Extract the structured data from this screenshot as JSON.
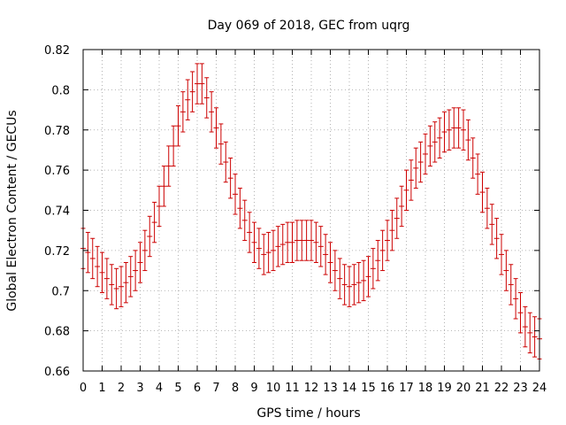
{
  "chart_data": {
    "type": "scatter",
    "title": "Day 069 of 2018, GEC from uqrg",
    "xlabel": "GPS time / hours",
    "ylabel": "Global Electron Content / GECUs",
    "xlim": [
      0,
      24
    ],
    "ylim": [
      0.66,
      0.82
    ],
    "grid": true,
    "x_ticks": [
      "0",
      "1",
      "2",
      "3",
      "4",
      "5",
      "6",
      "7",
      "8",
      "9",
      "10",
      "11",
      "12",
      "13",
      "14",
      "15",
      "16",
      "17",
      "18",
      "19",
      "20",
      "21",
      "22",
      "23",
      "24"
    ],
    "y_ticks": [
      "0.66",
      "0.68",
      "0.7",
      "0.72",
      "0.74",
      "0.76",
      "0.78",
      "0.8",
      "0.82"
    ],
    "error": 0.01,
    "series": [
      {
        "color": "#cc0000",
        "marker": "cross",
        "error_bars": true,
        "x": [
          0,
          0.25,
          0.5,
          0.75,
          1,
          1.25,
          1.5,
          1.75,
          2,
          2.25,
          2.5,
          2.75,
          3,
          3.25,
          3.5,
          3.75,
          4,
          4.25,
          4.5,
          4.75,
          5,
          5.25,
          5.5,
          5.75,
          6,
          6.25,
          6.5,
          6.75,
          7,
          7.25,
          7.5,
          7.75,
          8,
          8.25,
          8.5,
          8.75,
          9,
          9.25,
          9.5,
          9.75,
          10,
          10.25,
          10.5,
          10.75,
          11,
          11.25,
          11.5,
          11.75,
          12,
          12.25,
          12.5,
          12.75,
          13,
          13.25,
          13.5,
          13.75,
          14,
          14.25,
          14.5,
          14.75,
          15,
          15.25,
          15.5,
          15.75,
          16,
          16.25,
          16.5,
          16.75,
          17,
          17.25,
          17.5,
          17.75,
          18,
          18.25,
          18.5,
          18.75,
          19,
          19.25,
          19.5,
          19.75,
          20,
          20.25,
          20.5,
          20.75,
          21,
          21.25,
          21.5,
          21.75,
          22,
          22.25,
          22.5,
          22.75,
          23,
          23.25,
          23.5,
          23.75,
          24
        ],
        "y": [
          0.721,
          0.719,
          0.716,
          0.712,
          0.709,
          0.706,
          0.703,
          0.701,
          0.702,
          0.704,
          0.707,
          0.71,
          0.714,
          0.72,
          0.727,
          0.734,
          0.742,
          0.752,
          0.762,
          0.772,
          0.782,
          0.789,
          0.795,
          0.799,
          0.803,
          0.803,
          0.796,
          0.789,
          0.781,
          0.773,
          0.764,
          0.756,
          0.748,
          0.741,
          0.735,
          0.729,
          0.724,
          0.721,
          0.718,
          0.719,
          0.72,
          0.722,
          0.723,
          0.724,
          0.724,
          0.725,
          0.725,
          0.725,
          0.725,
          0.724,
          0.722,
          0.718,
          0.714,
          0.71,
          0.706,
          0.703,
          0.702,
          0.703,
          0.704,
          0.705,
          0.707,
          0.711,
          0.715,
          0.72,
          0.725,
          0.73,
          0.736,
          0.742,
          0.75,
          0.755,
          0.761,
          0.764,
          0.768,
          0.772,
          0.774,
          0.776,
          0.779,
          0.78,
          0.781,
          0.781,
          0.78,
          0.775,
          0.766,
          0.758,
          0.749,
          0.741,
          0.733,
          0.726,
          0.718,
          0.71,
          0.703,
          0.696,
          0.689,
          0.682,
          0.679,
          0.677,
          0.676
        ]
      }
    ]
  }
}
